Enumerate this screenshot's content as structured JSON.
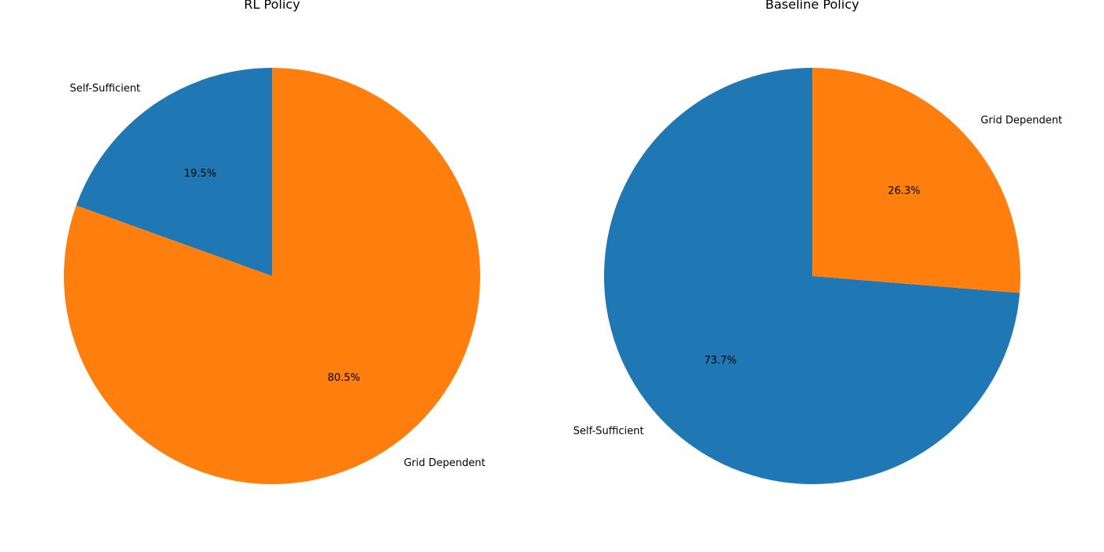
{
  "chart_data": [
    {
      "type": "pie",
      "title": "RL Policy",
      "start_angle_deg": 90,
      "direction": "counterclockwise",
      "slices": [
        {
          "label": "Self-Sufficient",
          "value": 19.5,
          "pct_label": "19.5%",
          "color": "#1f77b4"
        },
        {
          "label": "Grid Dependent",
          "value": 80.5,
          "pct_label": "80.5%",
          "color": "#ff7f0e"
        }
      ]
    },
    {
      "type": "pie",
      "title": "Baseline Policy",
      "start_angle_deg": 90,
      "direction": "counterclockwise",
      "slices": [
        {
          "label": "Self-Sufficient",
          "value": 73.7,
          "pct_label": "73.7%",
          "color": "#1f77b4"
        },
        {
          "label": "Grid Dependent",
          "value": 26.3,
          "pct_label": "26.3%",
          "color": "#ff7f0e"
        }
      ]
    }
  ]
}
